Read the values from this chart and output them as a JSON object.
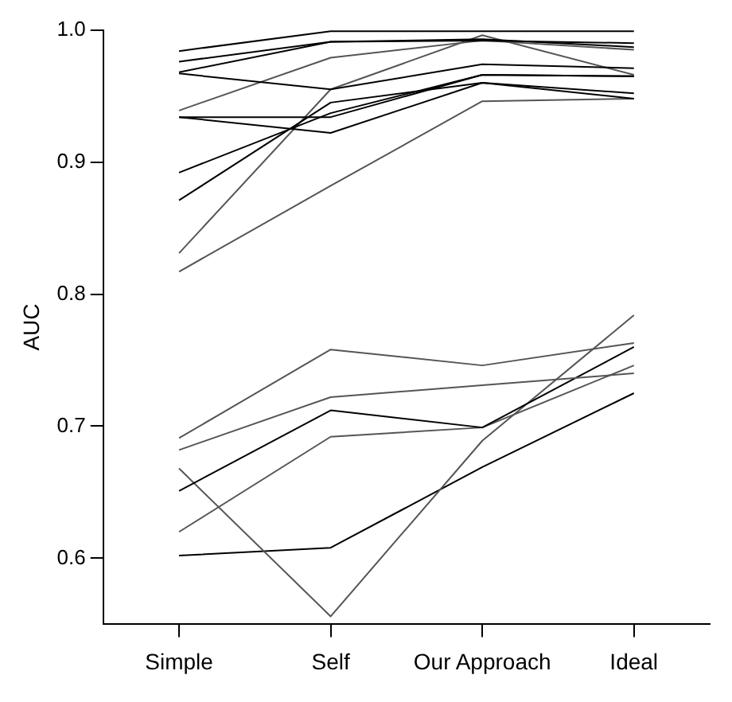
{
  "chart_data": {
    "type": "line",
    "ylabel": "AUC",
    "categories": [
      "Simple",
      "Self",
      "Our Approach",
      "Ideal"
    ],
    "series": [
      {
        "color": "#000000",
        "values": [
          0.984,
          0.999,
          0.999,
          0.999
        ]
      },
      {
        "color": "#000000",
        "values": [
          0.976,
          0.991,
          0.992,
          0.99
        ]
      },
      {
        "color": "#000000",
        "values": [
          0.968,
          0.991,
          0.993,
          0.987
        ]
      },
      {
        "color": "#000000",
        "values": [
          0.967,
          0.955,
          0.974,
          0.971
        ]
      },
      {
        "color": "#555555",
        "values": [
          0.939,
          0.979,
          0.992,
          0.985
        ]
      },
      {
        "color": "#000000",
        "values": [
          0.934,
          0.934,
          0.966,
          0.965
        ]
      },
      {
        "color": "#000000",
        "values": [
          0.934,
          0.922,
          0.96,
          0.952
        ]
      },
      {
        "color": "#000000",
        "values": [
          0.892,
          0.937,
          0.966,
          0.965
        ]
      },
      {
        "color": "#000000",
        "values": [
          0.871,
          0.945,
          0.96,
          0.948
        ]
      },
      {
        "color": "#555555",
        "values": [
          0.831,
          0.955,
          0.996,
          0.966
        ]
      },
      {
        "color": "#555555",
        "values": [
          0.817,
          0.882,
          0.946,
          0.948
        ]
      },
      {
        "color": "#555555",
        "values": [
          0.691,
          0.758,
          0.746,
          0.763
        ]
      },
      {
        "color": "#555555",
        "values": [
          0.682,
          0.722,
          0.731,
          0.74
        ]
      },
      {
        "color": "#000000",
        "values": [
          0.651,
          0.712,
          0.699,
          0.76
        ]
      },
      {
        "color": "#555555",
        "values": [
          0.62,
          0.692,
          0.699,
          0.746
        ]
      },
      {
        "color": "#555555",
        "values": [
          0.668,
          0.556,
          0.689,
          0.784
        ]
      },
      {
        "color": "#000000",
        "values": [
          0.602,
          0.608,
          0.669,
          0.725
        ]
      }
    ],
    "ylim": [
      0.55,
      1.0
    ],
    "yticks": [
      0.6,
      0.7,
      0.8,
      0.9,
      {
        "value": 1,
        "label": "1.0"
      }
    ],
    "grid": false,
    "legend": false,
    "marker": "none",
    "line_style": "solid"
  }
}
